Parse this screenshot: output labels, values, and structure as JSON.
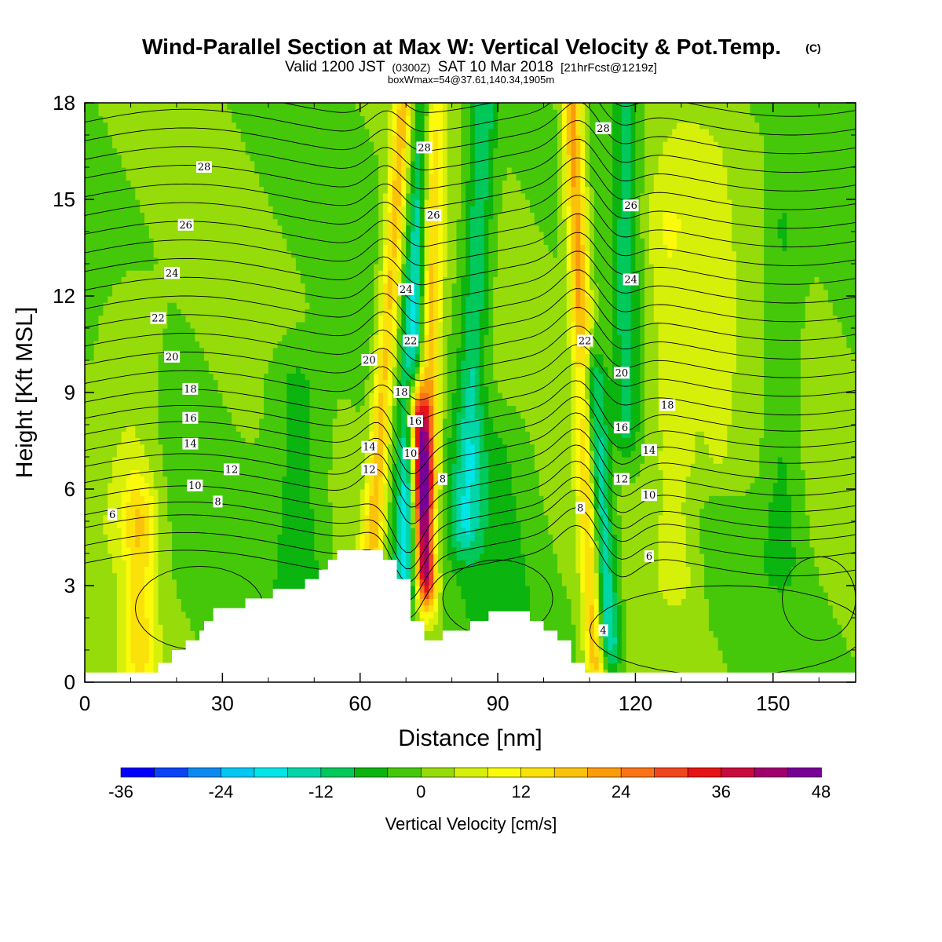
{
  "header": {
    "title": "Wind-Parallel Section at Max W: Vertical Velocity & Pot.Temp.",
    "copyright": "(C)",
    "valid_prefix": "Valid 1200 JST",
    "valid_utc": "(0300Z)",
    "valid_date": "SAT 10 Mar 2018",
    "forecast": "[21hrFcst@1219z]",
    "box_info": "boxWmax=54@37.61,140.34,1905m"
  },
  "colors": {
    "w_palette": [
      "#0000ff",
      "#0b44f6",
      "#0a8af0",
      "#00c8f5",
      "#00e6e6",
      "#00d6a8",
      "#00c85a",
      "#0bb40f",
      "#46c80a",
      "#96dc0a",
      "#d7f00a",
      "#fafa0a",
      "#fae10a",
      "#fac30a",
      "#fa9b0a",
      "#fa7314",
      "#f0461e",
      "#e61414",
      "#c80a3c",
      "#a0006e",
      "#780096"
    ],
    "terrain": "#ffffff",
    "contour": "#000000"
  },
  "chart_data": {
    "type": "heatmap",
    "title": "Wind-Parallel Section at Max W: Vertical Velocity & Pot.Temp.",
    "xlabel": "Distance [nm]",
    "ylabel": "Height [Kft MSL]",
    "xlim": [
      0,
      168
    ],
    "ylim": [
      0,
      18
    ],
    "x_ticks": [
      0,
      30,
      60,
      90,
      120,
      150
    ],
    "y_ticks": [
      0,
      3,
      6,
      9,
      12,
      15,
      18
    ],
    "colorbar": {
      "title": "Vertical Velocity [cm/s]",
      "min": -36,
      "max": 50,
      "step": 4,
      "tick_labels": [
        "-36",
        "-24",
        "-12",
        "0",
        "12",
        "24",
        "36",
        "48"
      ],
      "tick_values": [
        -36,
        -24,
        -12,
        0,
        12,
        24,
        36,
        48
      ]
    },
    "contour_labels": [
      {
        "text": "28",
        "x": 26,
        "y": 16.0
      },
      {
        "text": "26",
        "x": 22,
        "y": 14.2
      },
      {
        "text": "24",
        "x": 19,
        "y": 12.7
      },
      {
        "text": "22",
        "x": 16,
        "y": 11.3
      },
      {
        "text": "20",
        "x": 19,
        "y": 10.1
      },
      {
        "text": "18",
        "x": 23,
        "y": 9.1
      },
      {
        "text": "16",
        "x": 23,
        "y": 8.2
      },
      {
        "text": "14",
        "x": 23,
        "y": 7.4
      },
      {
        "text": "12",
        "x": 32,
        "y": 6.6
      },
      {
        "text": "10",
        "x": 24,
        "y": 6.1
      },
      {
        "text": "8",
        "x": 29,
        "y": 5.6
      },
      {
        "text": "6",
        "x": 6,
        "y": 5.2
      },
      {
        "text": "28",
        "x": 74,
        "y": 16.6
      },
      {
        "text": "26",
        "x": 76,
        "y": 14.5
      },
      {
        "text": "24",
        "x": 70,
        "y": 12.2
      },
      {
        "text": "22",
        "x": 71,
        "y": 10.6
      },
      {
        "text": "20",
        "x": 62,
        "y": 10.0
      },
      {
        "text": "18",
        "x": 69,
        "y": 9.0
      },
      {
        "text": "16",
        "x": 72,
        "y": 8.1
      },
      {
        "text": "14",
        "x": 62,
        "y": 7.3
      },
      {
        "text": "10",
        "x": 71,
        "y": 7.1
      },
      {
        "text": "12",
        "x": 62,
        "y": 6.6
      },
      {
        "text": "8",
        "x": 78,
        "y": 6.3
      },
      {
        "text": "28",
        "x": 113,
        "y": 17.2
      },
      {
        "text": "26",
        "x": 119,
        "y": 14.8
      },
      {
        "text": "24",
        "x": 119,
        "y": 12.5
      },
      {
        "text": "22",
        "x": 109,
        "y": 10.6
      },
      {
        "text": "20",
        "x": 117,
        "y": 9.6
      },
      {
        "text": "18",
        "x": 127,
        "y": 8.6
      },
      {
        "text": "16",
        "x": 117,
        "y": 7.9
      },
      {
        "text": "14",
        "x": 123,
        "y": 7.2
      },
      {
        "text": "12",
        "x": 117,
        "y": 6.3
      },
      {
        "text": "10",
        "x": 123,
        "y": 5.8
      },
      {
        "text": "8",
        "x": 108,
        "y": 5.4
      },
      {
        "text": "6",
        "x": 123,
        "y": 3.9
      },
      {
        "text": "4",
        "x": 113,
        "y": 1.6
      }
    ],
    "terrain": [
      [
        0,
        0.3
      ],
      [
        16,
        0.3
      ],
      [
        16,
        0.6
      ],
      [
        19,
        0.6
      ],
      [
        19,
        1.0
      ],
      [
        22,
        1.0
      ],
      [
        22,
        1.3
      ],
      [
        25,
        1.3
      ],
      [
        25,
        1.6
      ],
      [
        26,
        1.6
      ],
      [
        26,
        1.9
      ],
      [
        28,
        1.9
      ],
      [
        28,
        2.3
      ],
      [
        35,
        2.3
      ],
      [
        35,
        2.6
      ],
      [
        41,
        2.6
      ],
      [
        41,
        2.9
      ],
      [
        48,
        2.9
      ],
      [
        48,
        3.2
      ],
      [
        51,
        3.2
      ],
      [
        51,
        3.5
      ],
      [
        53,
        3.5
      ],
      [
        53,
        3.8
      ],
      [
        55,
        3.8
      ],
      [
        55,
        4.1
      ],
      [
        65,
        4.1
      ],
      [
        65,
        3.8
      ],
      [
        68,
        3.8
      ],
      [
        68,
        3.2
      ],
      [
        71,
        3.2
      ],
      [
        71,
        1.9
      ],
      [
        74,
        1.9
      ],
      [
        74,
        1.3
      ],
      [
        78,
        1.3
      ],
      [
        78,
        1.6
      ],
      [
        84,
        1.6
      ],
      [
        84,
        1.9
      ],
      [
        88,
        1.9
      ],
      [
        88,
        2.2
      ],
      [
        97,
        2.2
      ],
      [
        97,
        1.9
      ],
      [
        100,
        1.9
      ],
      [
        100,
        1.6
      ],
      [
        103,
        1.6
      ],
      [
        103,
        1.3
      ],
      [
        106,
        1.3
      ],
      [
        106,
        0.6
      ],
      [
        109,
        0.6
      ],
      [
        109,
        0.3
      ],
      [
        168,
        0.3
      ],
      [
        168,
        0
      ],
      [
        0,
        0
      ]
    ]
  }
}
